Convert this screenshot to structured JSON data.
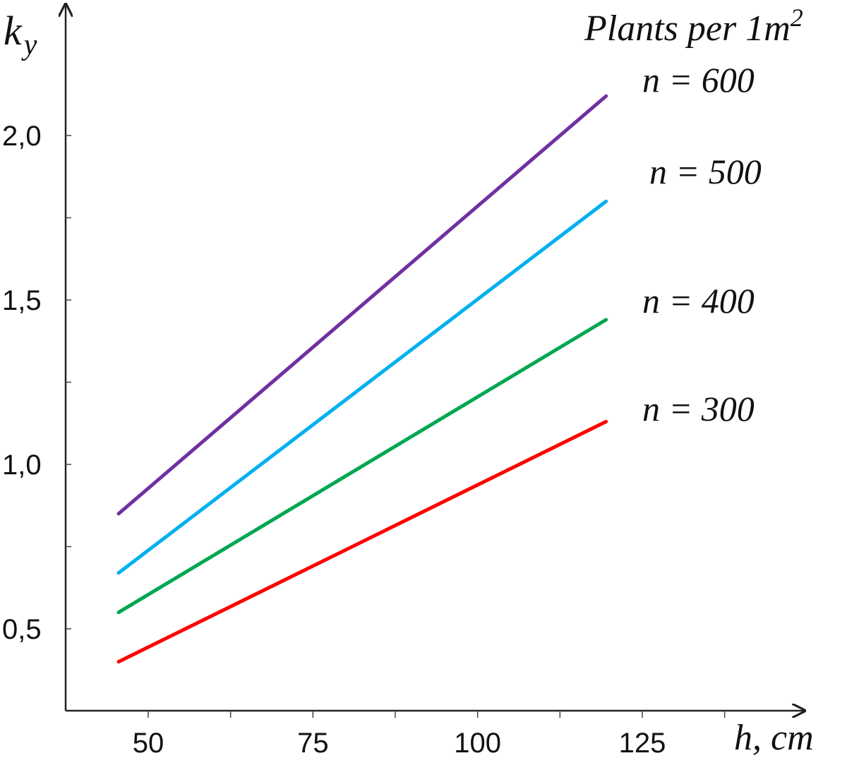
{
  "chart_data": {
    "type": "line",
    "title": "",
    "legend_title": "Plants per 1m",
    "legend_title_superscript": "2",
    "ylabel": "k",
    "ylabel_subscript": "y",
    "xlabel": "h, cm",
    "xlim": [
      45,
      140
    ],
    "ylim": [
      0.27,
      2.4
    ],
    "x_ticks": [
      {
        "value": 50,
        "label": "50"
      },
      {
        "value": 75,
        "label": "75"
      },
      {
        "value": 100,
        "label": "100"
      },
      {
        "value": 125,
        "label": "125"
      }
    ],
    "x_minor_ticks": [
      62.5,
      87.5,
      112.5,
      137.5
    ],
    "y_ticks": [
      {
        "value": 0.5,
        "label": "0,5"
      },
      {
        "value": 1.0,
        "label": "1,0"
      },
      {
        "value": 1.5,
        "label": "1,5"
      },
      {
        "value": 2.0,
        "label": "2,0"
      }
    ],
    "y_minor_ticks": [
      0.75,
      1.25,
      1.75
    ],
    "grid": false,
    "series": [
      {
        "name": "n = 600",
        "color": "#7030a0",
        "x": [
          45.5,
          119.5
        ],
        "values": [
          0.85,
          2.12
        ]
      },
      {
        "name": "n = 500",
        "color": "#00b0f0",
        "x": [
          45.5,
          119.5
        ],
        "values": [
          0.67,
          1.8
        ]
      },
      {
        "name": "n = 400",
        "color": "#00a650",
        "x": [
          45.5,
          119.5
        ],
        "values": [
          0.55,
          1.44
        ]
      },
      {
        "name": "n = 300",
        "color": "#ff0000",
        "x": [
          45.5,
          119.5
        ],
        "values": [
          0.4,
          1.13
        ]
      }
    ]
  }
}
